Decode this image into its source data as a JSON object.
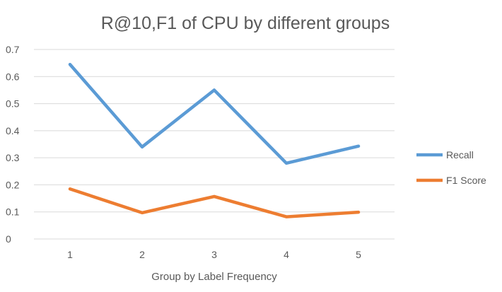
{
  "chart_data": {
    "type": "line",
    "title": "R@10,F1 of CPU by different groups",
    "xlabel": "Group by Label Frequency",
    "ylabel": "",
    "x": [
      "1",
      "2",
      "3",
      "4",
      "5"
    ],
    "ylim": [
      0,
      0.7
    ],
    "yticks": [
      "0",
      "0.1",
      "0.2",
      "0.3",
      "0.4",
      "0.5",
      "0.6",
      "0.7"
    ],
    "grid": true,
    "legend_position": "right",
    "series": [
      {
        "name": "Recall",
        "values": [
          0.645,
          0.34,
          0.55,
          0.28,
          0.343
        ],
        "color": "#5B9BD5"
      },
      {
        "name": "F1 Score",
        "values": [
          0.185,
          0.097,
          0.157,
          0.082,
          0.099
        ],
        "color": "#ED7D31"
      }
    ]
  }
}
